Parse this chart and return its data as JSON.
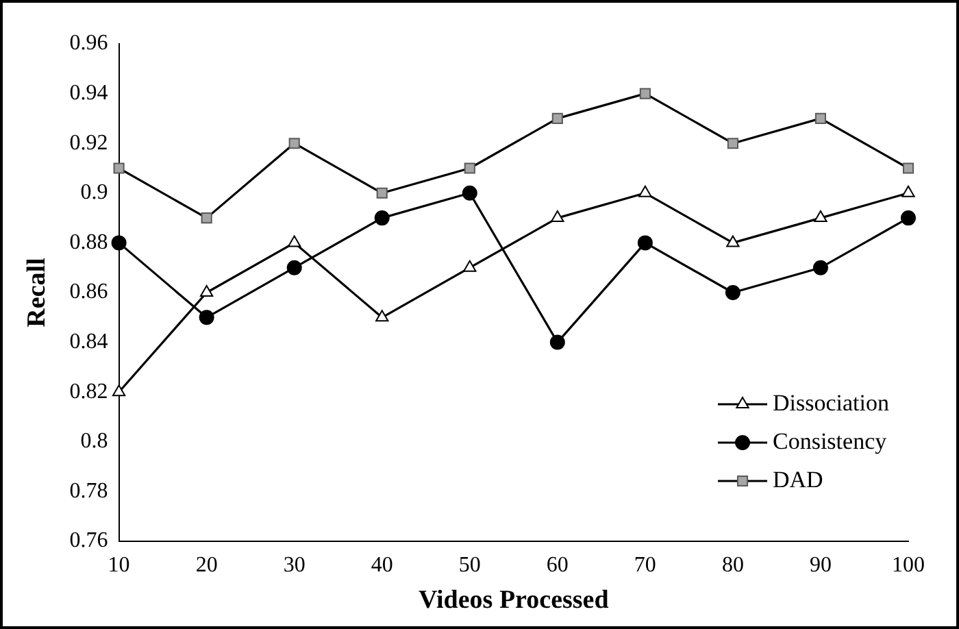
{
  "chart_data": {
    "type": "line",
    "xlabel": "Videos Processed",
    "ylabel": "Recall",
    "categories": [
      "10",
      "20",
      "30",
      "40",
      "50",
      "60",
      "70",
      "80",
      "90",
      "100"
    ],
    "series": [
      {
        "name": "Dissociation",
        "color": "#000000",
        "marker": "triangle",
        "values": [
          0.82,
          0.86,
          0.88,
          0.85,
          0.87,
          0.89,
          0.9,
          0.88,
          0.89,
          0.9
        ]
      },
      {
        "name": "Consistency",
        "color": "#000000",
        "marker": "circle",
        "values": [
          0.88,
          0.85,
          0.87,
          0.89,
          0.9,
          0.84,
          0.88,
          0.86,
          0.87,
          0.89
        ]
      },
      {
        "name": "DAD",
        "color": "#000000",
        "marker": "square",
        "values": [
          0.91,
          0.89,
          0.92,
          0.9,
          0.91,
          0.93,
          0.94,
          0.92,
          0.93,
          0.91
        ]
      }
    ],
    "ylim": [
      0.76,
      0.96
    ],
    "yticks": [
      0.76,
      0.78,
      0.8,
      0.82,
      0.84,
      0.86,
      0.88,
      0.9,
      0.92,
      0.94,
      0.96
    ],
    "grid": false,
    "legend": "bottom right",
    "line_style": "solid"
  }
}
